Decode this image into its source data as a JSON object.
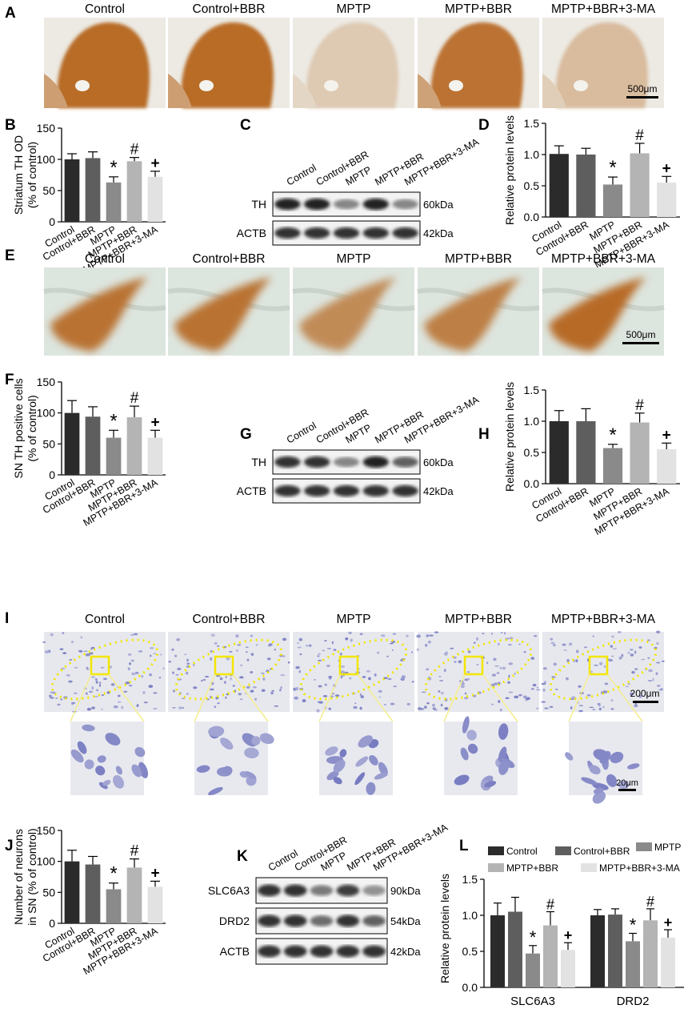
{
  "groups": [
    "Control",
    "Control+BBR",
    "MPTP",
    "MPTP+BBR",
    "MPTP+BBR+3-MA"
  ],
  "bar_colors": [
    "#2b2b2b",
    "#5e5e5e",
    "#8a8a8a",
    "#b4b4b4",
    "#e2e2e2"
  ],
  "stain_colors": {
    "th_stain": "#b5651d",
    "nissl_stain": "#5a5fb5",
    "roi": "#f2e600"
  },
  "panels": {
    "A": {
      "letter": "A",
      "headers": [
        "Control",
        "Control+BBR",
        "MPTP",
        "MPTP+BBR",
        "MPTP+BBR+3-MA"
      ],
      "scale": "500μm",
      "intensity": [
        0.95,
        0.95,
        0.25,
        0.9,
        0.35
      ]
    },
    "E": {
      "letter": "E",
      "headers": [
        "Control",
        "Control+BBR",
        "MPTP",
        "MPTP+BBR",
        "MPTP+BBR+3-MA"
      ],
      "scale": "500μm",
      "intensity": [
        0.9,
        0.9,
        0.7,
        0.8,
        0.95
      ]
    },
    "I": {
      "letter": "I",
      "headers": [
        "Control",
        "Control+BBR",
        "MPTP",
        "MPTP+BBR",
        "MPTP+BBR+3-MA"
      ],
      "scale": "200μm",
      "zoom_scale": "20μm"
    },
    "C": {
      "letter": "C",
      "lanes": [
        "Control",
        "Control+BBR",
        "MPTP",
        "MPTP+BBR",
        "MPTP+BBR+3-MA"
      ],
      "rows": [
        {
          "label": "TH",
          "kda": "60kDa",
          "intensity": [
            0.85,
            0.85,
            0.45,
            0.85,
            0.45
          ]
        },
        {
          "label": "ACTB",
          "kda": "42kDa",
          "intensity": [
            0.8,
            0.8,
            0.8,
            0.8,
            0.8
          ]
        }
      ]
    },
    "G": {
      "letter": "G",
      "lanes": [
        "Control",
        "Control+BBR",
        "MPTP",
        "MPTP+BBR",
        "MPTP+BBR+3-MA"
      ],
      "rows": [
        {
          "label": "TH",
          "kda": "60kDa",
          "intensity": [
            0.8,
            0.8,
            0.45,
            0.85,
            0.6
          ]
        },
        {
          "label": "ACTB",
          "kda": "42kDa",
          "intensity": [
            0.8,
            0.8,
            0.8,
            0.8,
            0.8
          ]
        }
      ]
    },
    "K": {
      "letter": "K",
      "lanes": [
        "Control",
        "Control+BBR",
        "MPTP",
        "MPTP+BBR",
        "MPTP+BBR+3-MA"
      ],
      "rows": [
        {
          "label": "SLC6A3",
          "kda": "90kDa",
          "intensity": [
            0.8,
            0.8,
            0.5,
            0.75,
            0.4
          ]
        },
        {
          "label": "DRD2",
          "kda": "54kDa",
          "intensity": [
            0.8,
            0.8,
            0.55,
            0.8,
            0.6
          ]
        },
        {
          "label": "ACTB",
          "kda": "42kDa",
          "intensity": [
            0.8,
            0.8,
            0.8,
            0.8,
            0.8
          ]
        }
      ]
    }
  },
  "chart_data": [
    {
      "panel": "B",
      "letter": "B",
      "type": "bar",
      "categories": [
        "Control",
        "Control+BBR",
        "MPTP",
        "MPTP+BBR",
        "MPTP+BBR+3-MA"
      ],
      "values": [
        100,
        102,
        63,
        97,
        72
      ],
      "errors": [
        9,
        10,
        9,
        6,
        9
      ],
      "marks": [
        "",
        "",
        "*",
        "#",
        "+"
      ],
      "ylabel": [
        "Striatum TH OD",
        "(% of control)"
      ],
      "ylim": [
        0,
        150
      ],
      "yticks": [
        0,
        50,
        100,
        150
      ]
    },
    {
      "panel": "D",
      "letter": "D",
      "type": "bar",
      "categories": [
        "Control",
        "Control+BBR",
        "MPTP",
        "MPTP+BBR",
        "MPTP+BBR+3-MA"
      ],
      "values": [
        1.01,
        1.0,
        0.52,
        1.02,
        0.55
      ],
      "errors": [
        0.13,
        0.1,
        0.12,
        0.16,
        0.1
      ],
      "marks": [
        "",
        "",
        "*",
        "#",
        "+"
      ],
      "ylabel": [
        "Relative protein levels"
      ],
      "ylim": [
        0,
        1.5
      ],
      "yticks": [
        0.0,
        0.5,
        1.0,
        1.5
      ],
      "ytick_labels": [
        "0.0",
        "0.5",
        "1.0",
        "1.5"
      ]
    },
    {
      "panel": "F",
      "letter": "F",
      "type": "bar",
      "categories": [
        "Control",
        "Control+BBR",
        "MPTP",
        "MPTP+BBR",
        "MPTP+BBR+3-MA"
      ],
      "values": [
        100,
        94,
        60,
        93,
        60
      ],
      "errors": [
        20,
        16,
        12,
        18,
        12
      ],
      "marks": [
        "",
        "",
        "*",
        "#",
        "+"
      ],
      "ylabel": [
        "SN TH positive cells",
        "(% of control)"
      ],
      "ylim": [
        0,
        150
      ],
      "yticks": [
        0,
        50,
        100,
        150
      ]
    },
    {
      "panel": "H",
      "letter": "H",
      "type": "bar",
      "categories": [
        "Control",
        "Control+BBR",
        "MPTP",
        "MPTP+BBR",
        "MPTP+BBR+3-MA"
      ],
      "values": [
        1.0,
        1.0,
        0.57,
        0.98,
        0.55
      ],
      "errors": [
        0.17,
        0.2,
        0.06,
        0.15,
        0.1
      ],
      "marks": [
        "",
        "",
        "*",
        "#",
        "+"
      ],
      "ylabel": [
        "Relative protein levels"
      ],
      "ylim": [
        0,
        1.5
      ],
      "yticks": [
        0.0,
        0.5,
        1.0,
        1.5
      ],
      "ytick_labels": [
        "0.0",
        "0.5",
        "1.0",
        "1.5"
      ]
    },
    {
      "panel": "J",
      "letter": "J",
      "type": "bar",
      "categories": [
        "Control",
        "Control+BBR",
        "MPTP",
        "MPTP+BBR",
        "MPTP+BBR+3-MA"
      ],
      "values": [
        100,
        95,
        55,
        90,
        59
      ],
      "errors": [
        18,
        13,
        10,
        14,
        9
      ],
      "marks": [
        "",
        "",
        "*",
        "#",
        "+"
      ],
      "ylabel": [
        "Number of neurons",
        "in SN (% of control)"
      ],
      "ylim": [
        0,
        150
      ],
      "yticks": [
        0,
        50,
        100,
        150
      ]
    },
    {
      "panel": "L",
      "letter": "L",
      "type": "bar",
      "categories": [
        "SLC6A3",
        "DRD2"
      ],
      "series": [
        {
          "name": "Control",
          "values": [
            1.0,
            1.0
          ],
          "errors": [
            0.17,
            0.08
          ]
        },
        {
          "name": "Control+BBR",
          "values": [
            1.05,
            1.01
          ],
          "errors": [
            0.2,
            0.08
          ]
        },
        {
          "name": "MPTP",
          "values": [
            0.47,
            0.64
          ],
          "errors": [
            0.11,
            0.11
          ]
        },
        {
          "name": "MPTP+BBR",
          "values": [
            0.86,
            0.93
          ],
          "errors": [
            0.19,
            0.16
          ]
        },
        {
          "name": "MPTP+BBR+3-MA",
          "values": [
            0.52,
            0.69
          ],
          "errors": [
            0.1,
            0.11
          ]
        }
      ],
      "marks": [
        "",
        "",
        "*",
        "#",
        "+"
      ],
      "ylabel": [
        "Relative protein levels"
      ],
      "ylim": [
        0,
        1.5
      ],
      "yticks": [
        0.0,
        0.5,
        1.0,
        1.5
      ],
      "ytick_labels": [
        "0.0",
        "0.5",
        "1.0",
        "1.5"
      ],
      "legend": "top"
    }
  ]
}
